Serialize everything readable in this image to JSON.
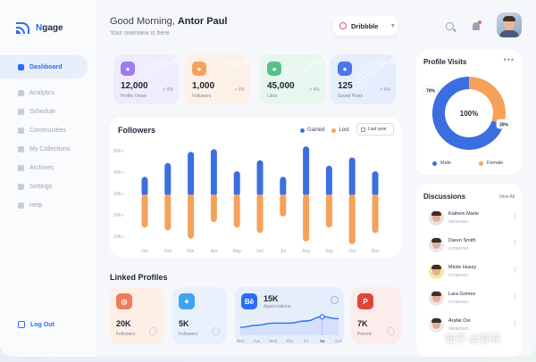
{
  "app": {
    "name_prefix": "N",
    "name_rest": "gage"
  },
  "sidebar": {
    "items": [
      {
        "label": "Dashboard",
        "icon": "grid-icon",
        "active": true
      },
      {
        "label": "Analytics",
        "icon": "analytics-icon"
      },
      {
        "label": "Schedule",
        "icon": "calendar-icon"
      },
      {
        "label": "Communities",
        "icon": "people-icon"
      },
      {
        "label": "My Collections",
        "icon": "collection-icon"
      },
      {
        "label": "Archives",
        "icon": "archive-icon"
      },
      {
        "label": "Settings",
        "icon": "gear-icon"
      },
      {
        "label": "Help",
        "icon": "help-icon"
      }
    ],
    "logout": "Log Out"
  },
  "header": {
    "greeting": "Good Morning, ",
    "user": "Antor Paul",
    "subtitle": "Your overview is here",
    "account_select": "Dribbble"
  },
  "stats": [
    {
      "value": "12,000",
      "label": "Profile Views",
      "trend": "↗ 5%",
      "color": "#9b7cf0",
      "bg": "#f0ebfd",
      "icon": "eye-icon"
    },
    {
      "value": "1,000",
      "label": "Followers",
      "trend": "↗ 3%",
      "color": "#f5a15a",
      "bg": "#fdf0e6",
      "icon": "followers-icon"
    },
    {
      "value": "45,000",
      "label": "Likes",
      "trend": "↗ 4%",
      "color": "#58c08a",
      "bg": "#e7f6ee",
      "icon": "heart-icon"
    },
    {
      "value": "125",
      "label": "Saved Posts",
      "trend": "↗ 4%",
      "color": "#4a76e8",
      "bg": "#e6edfc",
      "icon": "bookmark-icon"
    }
  ],
  "followers_card": {
    "title": "Followers",
    "legend_gained": "Gained",
    "legend_lost": "Lost",
    "period": "Last year"
  },
  "chart_data": {
    "type": "bar",
    "categories": [
      "Jan",
      "Feb",
      "Mar",
      "Apr",
      "May",
      "Jun",
      "Jul",
      "Aug",
      "Sep",
      "Oct",
      "Nov"
    ],
    "yticks": [
      "50K+",
      "40K+",
      "30K+",
      "20K+",
      "10K+"
    ],
    "series": [
      {
        "name": "Gained",
        "color": "#3b6fe0",
        "values": [
          7,
          12,
          16,
          17,
          9,
          13,
          7,
          18,
          11,
          14,
          9
        ]
      },
      {
        "name": "Lost",
        "color": "#f5a15a",
        "values": [
          12,
          13,
          16,
          10,
          12,
          14,
          8,
          17,
          12,
          18,
          14
        ]
      }
    ]
  },
  "linked": {
    "title": "Linked Profiles",
    "profiles": [
      {
        "value": "20K",
        "label": "Followers",
        "bg": "#fdeee6",
        "color": "#f07a5a",
        "icon": "instagram-icon",
        "glyph": "◎"
      },
      {
        "value": "5K",
        "label": "Followers",
        "bg": "#e7f0fc",
        "color": "#3fa3ee",
        "icon": "twitter-icon",
        "glyph": "✦"
      },
      {
        "value": "15K",
        "label": "Appreciations",
        "bg": "#e6eefc",
        "color": "#2c6cf6",
        "icon": "behance-icon",
        "glyph": "Bē"
      },
      {
        "value": "7K",
        "label": "Pinned",
        "bg": "#fdecec",
        "color": "#e0433b",
        "icon": "pinterest-icon",
        "glyph": "P"
      }
    ],
    "behance_chart": {
      "days": [
        "Mon",
        "Tue",
        "Wed",
        "Thu",
        "Fri",
        "Sa",
        "Sun"
      ],
      "values": [
        2,
        3,
        4,
        4,
        5,
        7,
        6
      ],
      "active_day": "Sa"
    }
  },
  "visits": {
    "title": "Profile Visits",
    "center": "100%",
    "slices": [
      {
        "name": "Male",
        "value": 70,
        "label": "70%",
        "color": "#3b6fe0"
      },
      {
        "name": "Female",
        "value": 30,
        "label": "30%",
        "color": "#f5a15a"
      }
    ]
  },
  "discussions": {
    "title": "Discussions",
    "view_all": "View All",
    "items": [
      {
        "name": "Kathein Marie",
        "date": "20/05/2021",
        "bg": "#e9e3dc"
      },
      {
        "name": "Daren Smith",
        "date": "27/05/2021",
        "bg": "#e6e9ef"
      },
      {
        "name": "Micke Hussy",
        "date": "27/05/2021",
        "bg": "#f6e7a6"
      },
      {
        "name": "Lara Gomez",
        "date": "27/05/2021",
        "bg": "#ece4df"
      },
      {
        "name": "Arafat Ovi",
        "date": "20/05/2021",
        "bg": "#e8ebf2"
      }
    ]
  },
  "watermark": "知乎 @郭东"
}
